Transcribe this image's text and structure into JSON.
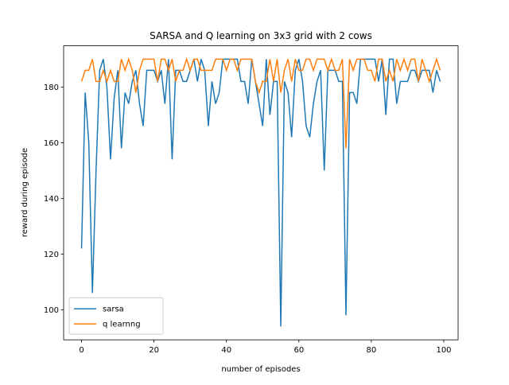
{
  "chart_data": {
    "type": "line",
    "title": "SARSA and Q learning on 3x3 grid with 2 cows",
    "xlabel": "number of episodes",
    "ylabel": "reward during episode",
    "x": [
      0,
      1,
      2,
      3,
      4,
      5,
      6,
      7,
      8,
      9,
      10,
      11,
      12,
      13,
      14,
      15,
      16,
      17,
      18,
      19,
      20,
      21,
      22,
      23,
      24,
      25,
      26,
      27,
      28,
      29,
      30,
      31,
      32,
      33,
      34,
      35,
      36,
      37,
      38,
      39,
      40,
      41,
      42,
      43,
      44,
      45,
      46,
      47,
      48,
      49,
      50,
      51,
      52,
      53,
      54,
      55,
      56,
      57,
      58,
      59,
      60,
      61,
      62,
      63,
      64,
      65,
      66,
      67,
      68,
      69,
      70,
      71,
      72,
      73,
      74,
      75,
      76,
      77,
      78,
      79,
      80,
      81,
      82,
      83,
      84,
      85,
      86,
      87,
      88,
      89,
      90,
      91,
      92,
      93,
      94,
      95,
      96,
      97,
      98,
      99
    ],
    "series": [
      {
        "name": "sarsa",
        "color": "#1f77b4",
        "values": [
          122,
          178,
          160,
          106,
          150,
          186,
          190,
          180,
          154,
          176,
          186,
          158,
          178,
          174,
          182,
          186,
          174,
          166,
          186,
          186,
          186,
          182,
          186,
          174,
          190,
          154,
          186,
          186,
          182,
          182,
          186,
          190,
          182,
          190,
          186,
          166,
          182,
          174,
          178,
          190,
          190,
          190,
          190,
          190,
          182,
          182,
          174,
          190,
          182,
          174,
          166,
          190,
          170,
          182,
          182,
          94,
          182,
          178,
          162,
          186,
          190,
          182,
          166,
          162,
          174,
          182,
          186,
          150,
          186,
          186,
          186,
          182,
          182,
          98,
          178,
          178,
          174,
          190,
          190,
          190,
          190,
          190,
          182,
          190,
          170,
          190,
          190,
          174,
          182,
          182,
          182,
          186,
          186,
          182,
          186,
          186,
          186,
          178,
          186,
          182
        ]
      },
      {
        "name": "q learnng",
        "color": "#ff7f0e",
        "values": [
          182,
          186,
          186,
          190,
          182,
          182,
          186,
          182,
          186,
          182,
          182,
          190,
          186,
          190,
          186,
          178,
          186,
          190,
          190,
          190,
          190,
          182,
          190,
          190,
          186,
          190,
          182,
          186,
          186,
          190,
          186,
          190,
          190,
          186,
          186,
          186,
          186,
          190,
          190,
          190,
          186,
          190,
          190,
          186,
          190,
          190,
          190,
          190,
          182,
          178,
          182,
          182,
          190,
          182,
          190,
          178,
          186,
          190,
          182,
          190,
          186,
          186,
          190,
          190,
          186,
          190,
          190,
          190,
          186,
          190,
          186,
          186,
          190,
          158,
          190,
          186,
          190,
          190,
          190,
          186,
          186,
          182,
          190,
          190,
          182,
          186,
          182,
          190,
          186,
          190,
          186,
          190,
          190,
          182,
          190,
          186,
          182,
          186,
          190,
          186
        ]
      }
    ],
    "xlim": [
      -4.95,
      103.95
    ],
    "ylim": [
      89.2,
      194.8
    ],
    "xticks": [
      0,
      20,
      40,
      60,
      80,
      100
    ],
    "yticks": [
      100,
      120,
      140,
      160,
      180
    ],
    "legend": "lower left"
  }
}
